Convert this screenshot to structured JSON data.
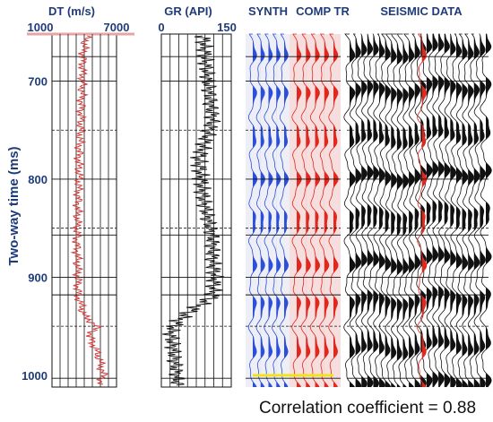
{
  "chart_data": {
    "type": "line",
    "ylabel": "Two-way time (ms)",
    "ylim": [
      652,
      1012
    ],
    "yticks": [
      700,
      800,
      900,
      1000
    ],
    "tracks": [
      {
        "title": "DT (m/s)",
        "xmin_label": "1000",
        "xmax_label": "7000",
        "xlim": [
          1000,
          7000
        ],
        "color": "#d23a3a"
      },
      {
        "title": "GR (API)",
        "xmin_label": "0",
        "xmax_label": "150",
        "xlim": [
          0,
          150
        ],
        "color": "#111111"
      },
      {
        "title": "SYNTH",
        "color": "#2b4fd8"
      },
      {
        "title": "COMP TR",
        "color": "#e0281e"
      },
      {
        "title": "SEISMIC DATA",
        "color": "#111111"
      }
    ],
    "horizons_solid_ms": [
      675,
      700,
      800,
      857,
      900,
      918,
      1003
    ],
    "horizons_dashed_ms": [
      750,
      850,
      950
    ],
    "highlight_ms": 1000,
    "dt_series": {
      "name": "",
      "t": [
        655,
        670,
        690,
        710,
        740,
        760,
        780,
        800,
        830,
        860,
        880,
        900,
        920,
        940,
        950,
        960,
        980,
        1000,
        1008
      ],
      "values": [
        4200,
        3900,
        3850,
        3800,
        3700,
        3600,
        3500,
        3500,
        3400,
        3300,
        3350,
        3400,
        3450,
        4000,
        5200,
        4500,
        5300,
        5800,
        5500
      ]
    },
    "gr_series": {
      "name": "",
      "t": [
        655,
        680,
        700,
        720,
        740,
        760,
        780,
        800,
        820,
        840,
        860,
        880,
        900,
        920,
        935,
        945,
        955,
        970,
        990,
        1008
      ],
      "values": [
        90,
        95,
        100,
        105,
        110,
        95,
        80,
        85,
        90,
        100,
        110,
        110,
        115,
        110,
        60,
        35,
        20,
        25,
        30,
        35
      ]
    },
    "correlation_text": "Correlation coefficient = 0.88"
  }
}
